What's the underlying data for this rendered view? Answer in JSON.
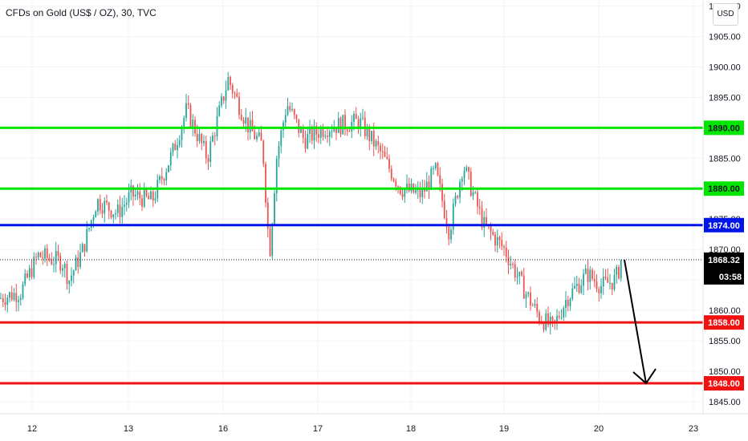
{
  "header": {
    "title": "CFDs on Gold (US$ / OZ), 30, TVC",
    "currency": "USD"
  },
  "colors": {
    "up": "#26a69a",
    "down": "#ef5350",
    "support_green": "#00e600",
    "resistance_blue": "#0015e6",
    "level_red": "#f21111",
    "arrow": "#000000",
    "last_price_bg": "#000000"
  },
  "chart_data": {
    "type": "candlestick",
    "symbol": "CFDs on Gold (US$ / OZ)",
    "interval": "30",
    "source": "TVC",
    "x_ticks": [
      "12",
      "13",
      "16",
      "17",
      "18",
      "19",
      "20",
      "23"
    ],
    "y_ticks": [
      1845,
      1850,
      1855,
      1860,
      1865,
      1870,
      1875,
      1880,
      1885,
      1890,
      1895,
      1900,
      1905,
      1910
    ],
    "ylim": [
      1843,
      1911
    ],
    "last_price": "1868.32",
    "countdown": "03:58",
    "horizontal_levels": [
      {
        "value": 1890,
        "label": "1890.00",
        "color": "#00e600"
      },
      {
        "value": 1880,
        "label": "1880.00",
        "color": "#00e600"
      },
      {
        "value": 1874,
        "label": "1874.00",
        "color": "#0015e6"
      },
      {
        "value": 1858,
        "label": "1858.00",
        "color": "#f21111"
      },
      {
        "value": 1848,
        "label": "1848.00",
        "color": "#f21111"
      }
    ],
    "trend_path": [
      {
        "x": 0,
        "y": 1862
      },
      {
        "x": 0.03,
        "y": 1863
      },
      {
        "x": 0.055,
        "y": 1869
      },
      {
        "x": 0.09,
        "y": 1868
      },
      {
        "x": 0.1,
        "y": 1865
      },
      {
        "x": 0.12,
        "y": 1870
      },
      {
        "x": 0.14,
        "y": 1878
      },
      {
        "x": 0.17,
        "y": 1876
      },
      {
        "x": 0.19,
        "y": 1879
      },
      {
        "x": 0.22,
        "y": 1878
      },
      {
        "x": 0.25,
        "y": 1886
      },
      {
        "x": 0.27,
        "y": 1893
      },
      {
        "x": 0.3,
        "y": 1885
      },
      {
        "x": 0.33,
        "y": 1898
      },
      {
        "x": 0.36,
        "y": 1890
      },
      {
        "x": 0.38,
        "y": 1887
      },
      {
        "x": 0.39,
        "y": 1869
      },
      {
        "x": 0.4,
        "y": 1885
      },
      {
        "x": 0.415,
        "y": 1894
      },
      {
        "x": 0.44,
        "y": 1888
      },
      {
        "x": 0.47,
        "y": 1890
      },
      {
        "x": 0.52,
        "y": 1891
      },
      {
        "x": 0.55,
        "y": 1886
      },
      {
        "x": 0.58,
        "y": 1880
      },
      {
        "x": 0.61,
        "y": 1879
      },
      {
        "x": 0.63,
        "y": 1883
      },
      {
        "x": 0.65,
        "y": 1873
      },
      {
        "x": 0.67,
        "y": 1884
      },
      {
        "x": 0.7,
        "y": 1874
      },
      {
        "x": 0.73,
        "y": 1870
      },
      {
        "x": 0.76,
        "y": 1863
      },
      {
        "x": 0.78,
        "y": 1859
      },
      {
        "x": 0.8,
        "y": 1857
      },
      {
        "x": 0.82,
        "y": 1862
      },
      {
        "x": 0.85,
        "y": 1866
      },
      {
        "x": 0.87,
        "y": 1864
      },
      {
        "x": 0.89,
        "y": 1865
      },
      {
        "x": 0.9,
        "y": 1868
      }
    ],
    "arrow": {
      "from": 1868.3,
      "to": 1848
    }
  }
}
